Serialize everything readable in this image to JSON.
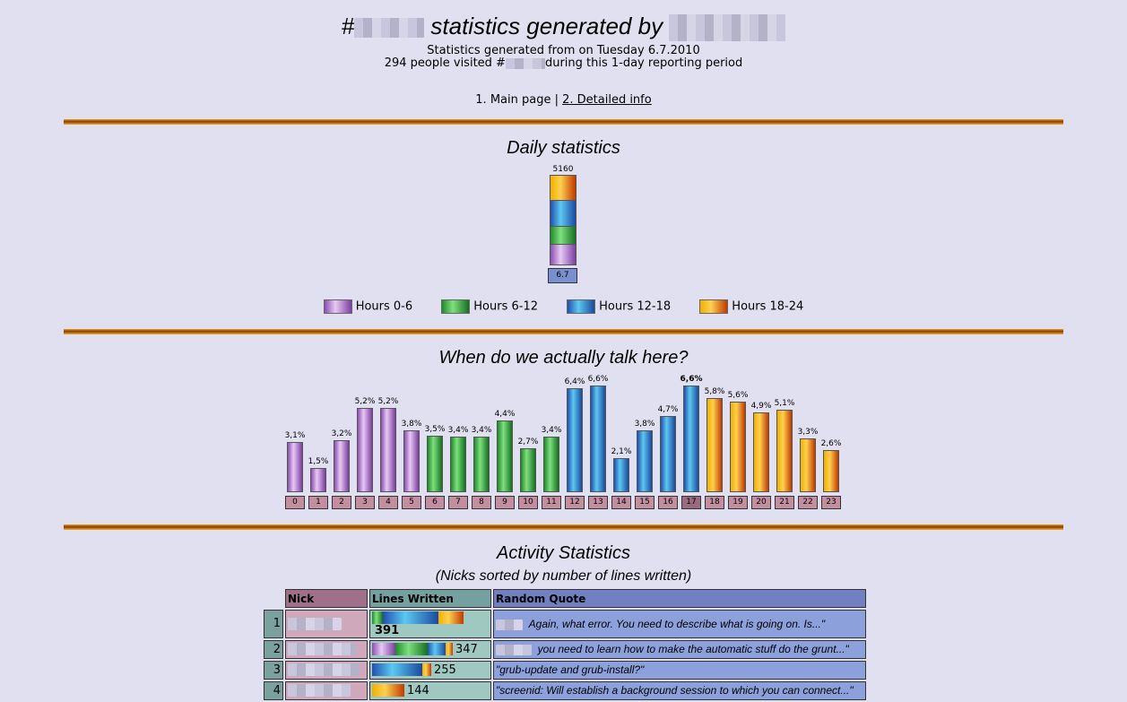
{
  "header": {
    "title_prefix": "#",
    "title_mid": " statistics generated by ",
    "generated_line": "Statistics generated from on Tuesday 6.7.2010",
    "visited_pre": "294 people visited #",
    "visited_post": "during this 1-day reporting period"
  },
  "nav": {
    "main": "1. Main page",
    "sep": " | ",
    "detailed": "2. Detailed info"
  },
  "daily": {
    "title": "Daily statistics",
    "total": "5160",
    "date": "6.7",
    "legend": [
      "Hours 0-6",
      "Hours 6-12",
      "Hours 12-18",
      "Hours 18-24"
    ],
    "colors": {
      "purple": "#8a4fb0",
      "green": "#1f8a2a",
      "blue": "#2050b0",
      "orange": "#f0b000"
    }
  },
  "hourly": {
    "title": "When do we actually talk here?",
    "hours": [
      "0",
      "1",
      "2",
      "3",
      "4",
      "5",
      "6",
      "7",
      "8",
      "9",
      "10",
      "11",
      "12",
      "13",
      "14",
      "15",
      "16",
      "17",
      "18",
      "19",
      "20",
      "21",
      "22",
      "23"
    ],
    "labels": [
      "3,1%",
      "1,5%",
      "3,2%",
      "5,2%",
      "5,2%",
      "3,8%",
      "3,5%",
      "3,4%",
      "3,4%",
      "4,4%",
      "2,7%",
      "3,4%",
      "6,4%",
      "6,6%",
      "2,1%",
      "3,8%",
      "4,7%",
      "6,6%",
      "5,8%",
      "5,6%",
      "4,9%",
      "5,1%",
      "3,3%",
      "2,6%"
    ],
    "percents": [
      3.1,
      1.5,
      3.2,
      5.2,
      5.2,
      3.8,
      3.5,
      3.4,
      3.4,
      4.4,
      2.7,
      3.4,
      6.4,
      6.6,
      2.1,
      3.8,
      4.7,
      6.6,
      5.8,
      5.6,
      4.9,
      5.1,
      3.3,
      2.6
    ],
    "highlight_hour": 17
  },
  "activity": {
    "title": "Activity Statistics",
    "subtitle": "(Nicks sorted by number of lines written)",
    "headers": {
      "nick": "Nick",
      "lines": "Lines Written",
      "quote": "Random Quote"
    },
    "rows": [
      {
        "rank": "1",
        "lines": "391",
        "quote": "Again, what error. You need to describe what is going on. Is...\""
      },
      {
        "rank": "2",
        "lines": "347",
        "quote": "you need to learn how to make the automatic stuff do the grunt...\""
      },
      {
        "rank": "3",
        "lines": "255",
        "quote": "\"grub-update and grub-install?\""
      },
      {
        "rank": "4",
        "lines": "144",
        "quote": "\"screenid: Will establish a background session to which you can connect...\""
      }
    ]
  }
}
